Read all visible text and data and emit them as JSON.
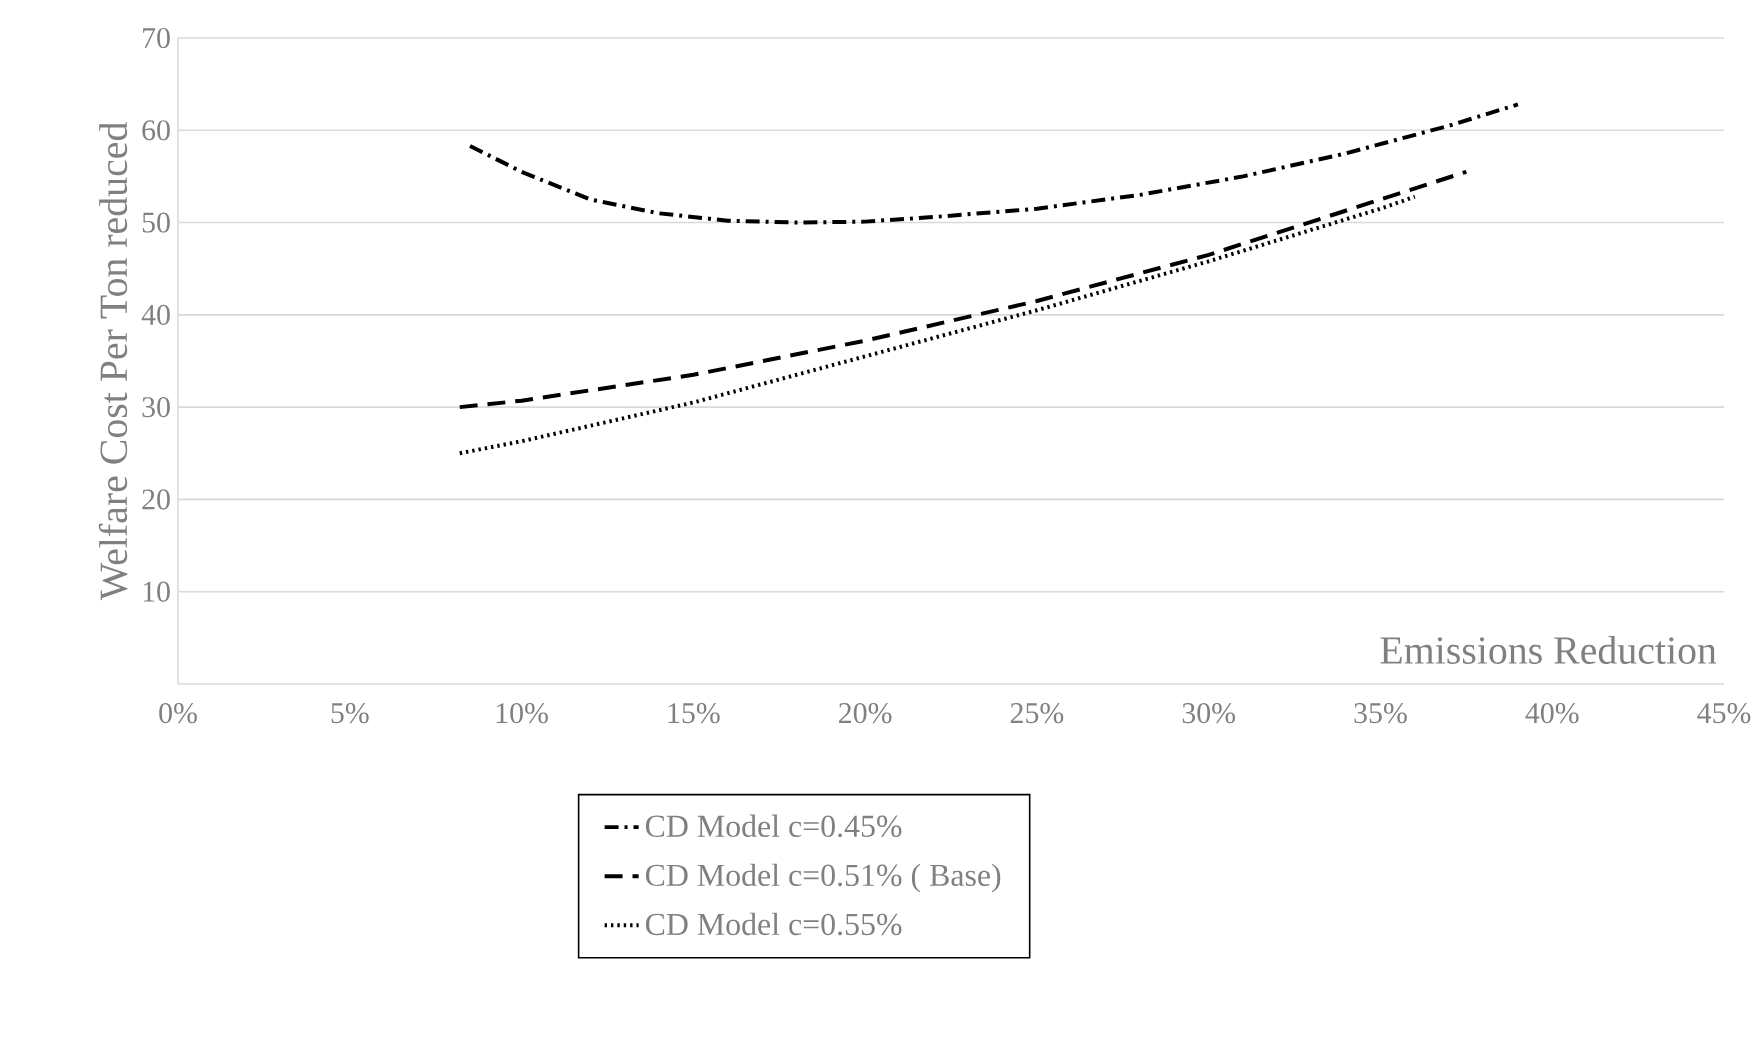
{
  "chart_data": {
    "type": "line",
    "xlabel": "Emissions Reduction",
    "ylabel": "Welfare Cost Per Ton reduced",
    "xlim": [
      0,
      45
    ],
    "ylim": [
      0,
      70
    ],
    "xticks": [
      {
        "value": 0,
        "label": "0%"
      },
      {
        "value": 5,
        "label": "5%"
      },
      {
        "value": 10,
        "label": "10%"
      },
      {
        "value": 15,
        "label": "15%"
      },
      {
        "value": 20,
        "label": "20%"
      },
      {
        "value": 25,
        "label": "25%"
      },
      {
        "value": 30,
        "label": "30%"
      },
      {
        "value": 35,
        "label": "35%"
      },
      {
        "value": 40,
        "label": "40%"
      },
      {
        "value": 45,
        "label": "45%"
      }
    ],
    "yticks": [
      10,
      20,
      30,
      40,
      50,
      60,
      70
    ],
    "grid": "y",
    "legend": "bottom",
    "marker": "none",
    "series": [
      {
        "name": "CD Model c=0.45%",
        "color": "#000000",
        "line_style": "dashdot",
        "x": [
          8.5,
          10,
          12,
          14,
          16,
          18,
          20,
          22,
          25,
          28,
          31,
          34,
          37,
          39
        ],
        "values": [
          58.3,
          55.5,
          52.5,
          51,
          50.2,
          50,
          50.1,
          50.6,
          51.5,
          53,
          55,
          57.5,
          60.5,
          62.8
        ]
      },
      {
        "name": "CD Model c=0.51% ( Base)",
        "color": "#000000",
        "line_style": "dashed",
        "x": [
          8.2,
          10,
          15,
          20,
          25,
          30,
          35,
          37.5
        ],
        "values": [
          30,
          30.7,
          33.5,
          37.2,
          41.5,
          46.5,
          52.5,
          55.5
        ]
      },
      {
        "name": "CD Model c=0.55%",
        "color": "#000000",
        "line_style": "dotted",
        "x": [
          8.2,
          10,
          15,
          20,
          25,
          30,
          35,
          36
        ],
        "values": [
          25,
          26.3,
          30.5,
          35.5,
          40.5,
          45.8,
          51.5,
          52.8
        ]
      }
    ]
  }
}
